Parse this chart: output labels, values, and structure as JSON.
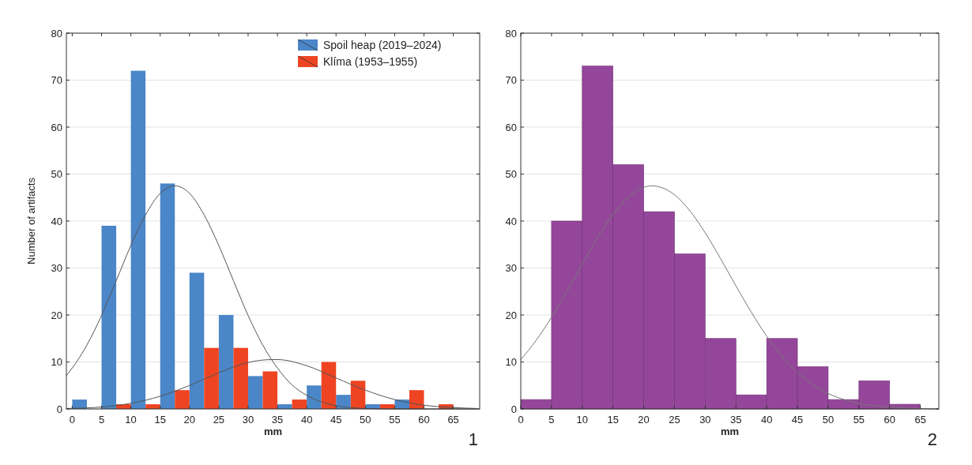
{
  "chart_data": [
    {
      "type": "histogram",
      "xlabel": "mm",
      "ylabel": "Number of artifacts",
      "bins": [
        0,
        5,
        10,
        15,
        20,
        25,
        30,
        35,
        40,
        45,
        50,
        55,
        60,
        65
      ],
      "xlim": [
        -1,
        69.5
      ],
      "xticks": [
        0,
        5,
        10,
        15,
        20,
        25,
        30,
        35,
        40,
        45,
        50,
        55,
        60,
        65
      ],
      "ylim": [
        0,
        80
      ],
      "yticks": [
        0,
        10,
        20,
        30,
        40,
        50,
        60,
        70,
        80
      ],
      "grid": "y",
      "legend": "top right",
      "annotations": [
        "1"
      ],
      "series": [
        {
          "name": "Spoil heap (2019–2024)",
          "color": "#4a86c8",
          "values": [
            2,
            39,
            72,
            48,
            29,
            20,
            7,
            1,
            5,
            3,
            1,
            2,
            0
          ]
        },
        {
          "name": "Klíma (1953–1955)",
          "color": "#ee4422",
          "values": [
            0,
            1,
            1,
            4,
            13,
            13,
            8,
            2,
            10,
            6,
            1,
            4,
            1
          ]
        },
        {
          "type": "line",
          "color": "#555555",
          "x": [
            -1,
            0,
            2.5,
            5,
            7.5,
            10,
            12.5,
            15,
            17.5,
            20,
            22.5,
            25,
            27.5,
            30,
            32.5,
            35,
            37.5,
            40,
            42.5,
            45,
            50,
            55,
            69
          ],
          "values": [
            7.1,
            8.7,
            13.6,
            19.9,
            27.3,
            34.8,
            41.3,
            45.9,
            47.5,
            45.9,
            41.3,
            34.8,
            27.3,
            19.9,
            13.6,
            8.7,
            5.1,
            2.9,
            1.5,
            0.7,
            0.1,
            0,
            0
          ]
        },
        {
          "type": "line",
          "color": "#555555",
          "x": [
            -1,
            5,
            10,
            15,
            20,
            25,
            30,
            34,
            35,
            40,
            45,
            50,
            55,
            60,
            65,
            69
          ],
          "values": [
            0.1,
            0.4,
            1.2,
            2.7,
            5.0,
            7.7,
            9.9,
            10.5,
            10.5,
            9.2,
            6.6,
            4.0,
            2.0,
            0.8,
            0.3,
            0.1
          ]
        }
      ]
    },
    {
      "type": "histogram",
      "xlabel": "mm",
      "bins": [
        0,
        5,
        10,
        15,
        20,
        25,
        30,
        35,
        40,
        45,
        50,
        55,
        60,
        65
      ],
      "xlim": [
        0,
        68
      ],
      "xticks": [
        0,
        5,
        10,
        15,
        20,
        25,
        30,
        35,
        40,
        45,
        50,
        55,
        60,
        65
      ],
      "ylim": [
        0,
        80
      ],
      "yticks": [
        0,
        10,
        20,
        30,
        40,
        50,
        60,
        70,
        80
      ],
      "grid": "y",
      "annotations": [
        "2"
      ],
      "series": [
        {
          "color": "#94479a",
          "values": [
            2,
            40,
            73,
            52,
            42,
            33,
            15,
            3,
            15,
            9,
            2,
            6,
            1
          ]
        },
        {
          "type": "line",
          "color": "#777777",
          "x": [
            0,
            2.5,
            5,
            7.5,
            10,
            12.5,
            15,
            17.5,
            20,
            21.5,
            22.5,
            25,
            27.5,
            30,
            32.5,
            35,
            37.5,
            40,
            42.5,
            45,
            47.5,
            50,
            55,
            60,
            65,
            68
          ],
          "values": [
            10.5,
            14.6,
            19.5,
            25.0,
            30.8,
            36.5,
            41.4,
            45.1,
            47.2,
            47.5,
            47.3,
            45.6,
            42.2,
            37.5,
            32.0,
            26.2,
            20.6,
            15.5,
            11.2,
            7.8,
            5.2,
            3.3,
            1.2,
            0.4,
            0.1,
            0
          ]
        }
      ]
    }
  ]
}
